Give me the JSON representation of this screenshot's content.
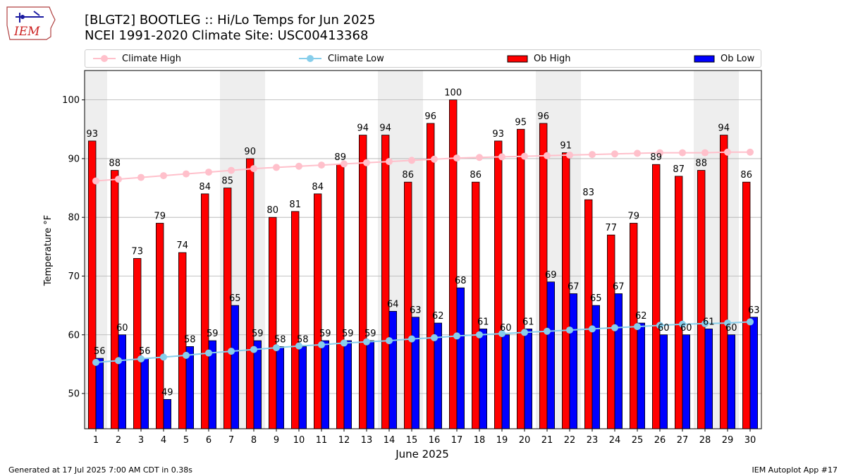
{
  "header": {
    "title_line1": "[BLGT2] BOOTLEG :: Hi/Lo Temps for Jun 2025",
    "title_line2": "NCEI 1991-2020 Climate Site: USC00413368",
    "logo_text": "IEM"
  },
  "legend": [
    {
      "label": "Climate High",
      "kind": "line",
      "color": "#ffc0cb"
    },
    {
      "label": "Climate Low",
      "kind": "line",
      "color": "#87ceeb"
    },
    {
      "label": "Ob High",
      "kind": "bar",
      "color": "#ff0000"
    },
    {
      "label": "Ob Low",
      "kind": "bar",
      "color": "#0000ff"
    }
  ],
  "footer": {
    "left": "Generated at 17 Jul 2025 7:00 AM CDT in 0.38s",
    "right": "IEM Autoplot App #17"
  },
  "chart_data": {
    "type": "bar",
    "xlabel": "June 2025",
    "ylabel": "Temperature °F",
    "ylim": [
      44,
      105
    ],
    "yticks": [
      50,
      60,
      70,
      80,
      90,
      100
    ],
    "grid": true,
    "legend_position": "top",
    "categories": [
      "1",
      "2",
      "3",
      "4",
      "5",
      "6",
      "7",
      "8",
      "9",
      "10",
      "11",
      "12",
      "13",
      "14",
      "15",
      "16",
      "17",
      "18",
      "19",
      "20",
      "21",
      "22",
      "23",
      "24",
      "25",
      "26",
      "27",
      "28",
      "29",
      "30"
    ],
    "weekend_days": [
      1,
      7,
      8,
      14,
      15,
      21,
      22,
      28,
      29
    ],
    "series": [
      {
        "name": "Ob High",
        "color": "#ff0000",
        "values": [
          93,
          88,
          73,
          79,
          74,
          84,
          85,
          90,
          80,
          81,
          84,
          89,
          94,
          94,
          86,
          96,
          100,
          86,
          93,
          95,
          96,
          91,
          83,
          77,
          79,
          89,
          87,
          88,
          94,
          86
        ]
      },
      {
        "name": "Ob Low",
        "color": "#0000ff",
        "values": [
          56,
          60,
          56,
          49,
          58,
          59,
          65,
          59,
          58,
          58,
          59,
          59,
          59,
          64,
          63,
          62,
          68,
          61,
          60,
          61,
          69,
          67,
          65,
          67,
          62,
          60,
          60,
          61,
          60,
          63
        ]
      },
      {
        "name": "Climate High",
        "color": "#ffc0cb",
        "values": [
          86.2,
          86.5,
          86.8,
          87.1,
          87.4,
          87.7,
          88.0,
          88.3,
          88.5,
          88.7,
          88.9,
          89.1,
          89.3,
          89.5,
          89.7,
          89.9,
          90.1,
          90.2,
          90.3,
          90.4,
          90.5,
          90.6,
          90.7,
          90.8,
          90.9,
          91.0,
          91.0,
          91.0,
          91.1,
          91.1
        ]
      },
      {
        "name": "Climate Low",
        "color": "#87ceeb",
        "values": [
          55.3,
          55.6,
          55.9,
          56.2,
          56.5,
          56.9,
          57.2,
          57.5,
          57.8,
          58.1,
          58.3,
          58.6,
          58.8,
          59.0,
          59.3,
          59.5,
          59.8,
          60.0,
          60.2,
          60.4,
          60.6,
          60.8,
          61.0,
          61.2,
          61.4,
          61.6,
          61.8,
          61.9,
          62.0,
          62.2
        ]
      }
    ]
  }
}
